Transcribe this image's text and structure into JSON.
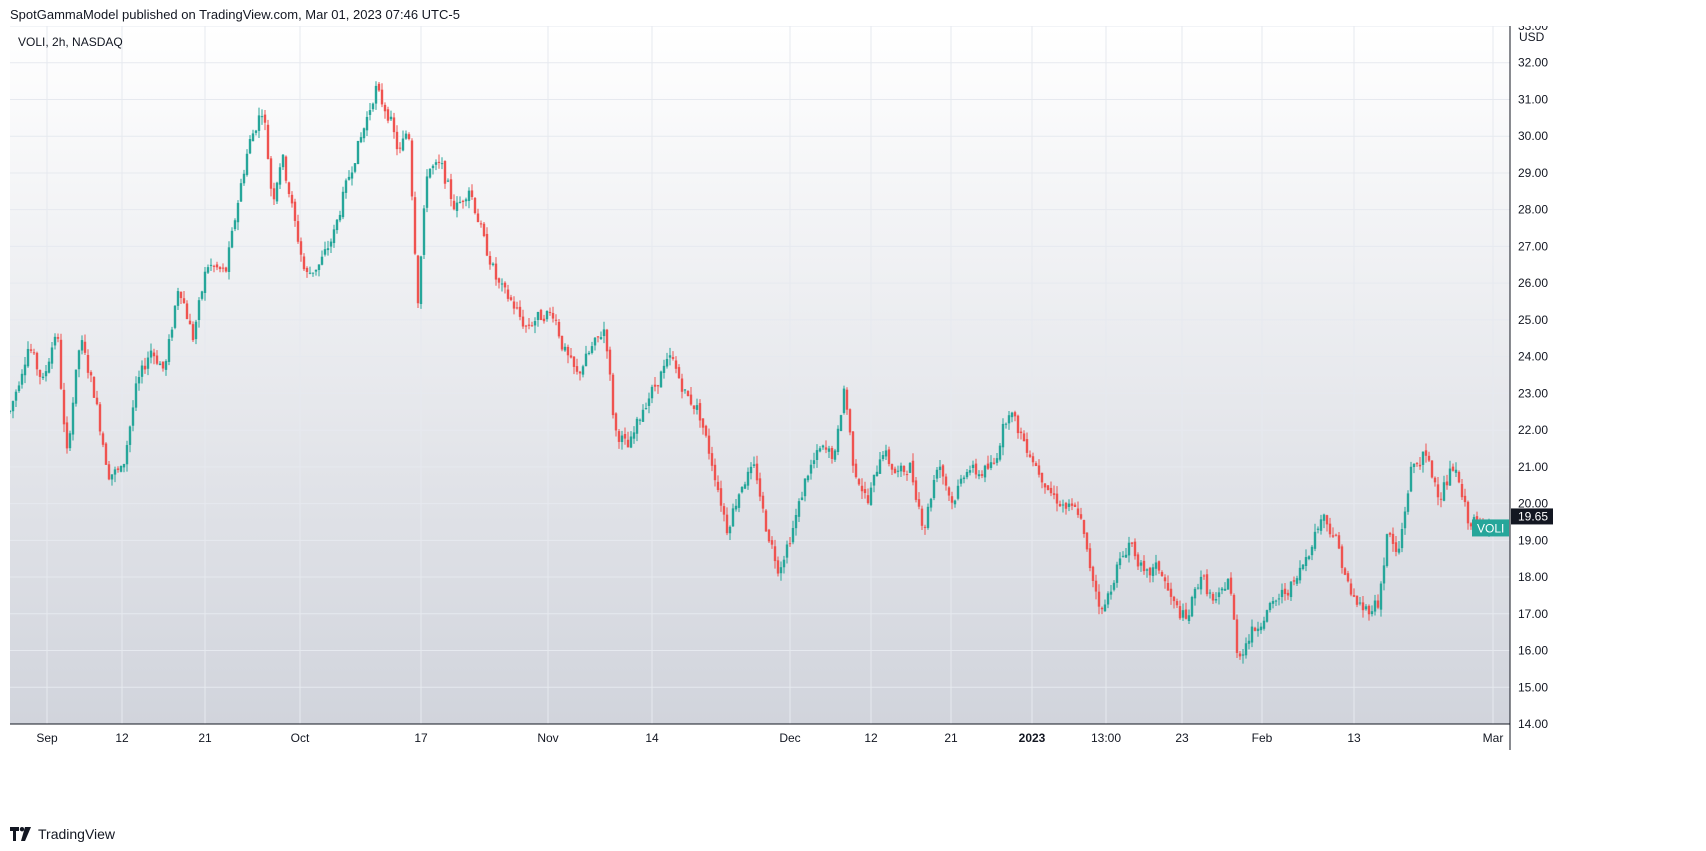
{
  "header": {
    "publisher_line": "SpotGammaModel published on TradingView.com, Mar 01, 2023 07:46 UTC-5"
  },
  "symbol_label": "VOLI, 2h, NASDAQ",
  "footer": {
    "brand": "TradingView",
    "logo_icon": "tradingview-logo-icon"
  },
  "colors": {
    "up": "#26a69a",
    "down": "#ef5350",
    "axis_text": "#131722",
    "grid": "#e6e9ef",
    "price_tag_bg": "#131722",
    "last_tag_bg": "#26a69a"
  },
  "chart_data": {
    "type": "candlestick",
    "title": "VOLI, 2h, NASDAQ",
    "currency_label": "USD",
    "ylim": [
      14,
      33
    ],
    "y_ticks": [
      "14.00",
      "15.00",
      "16.00",
      "17.00",
      "18.00",
      "19.00",
      "20.00",
      "21.00",
      "22.00",
      "23.00",
      "24.00",
      "25.00",
      "26.00",
      "27.00",
      "28.00",
      "29.00",
      "30.00",
      "31.00",
      "32.00",
      "33.00"
    ],
    "x_ticks": [
      "Sep",
      "12",
      "21",
      "Oct",
      "17",
      "Nov",
      "14",
      "Dec",
      "12",
      "21",
      "2023",
      "13:00",
      "23",
      "Feb",
      "13",
      "Mar"
    ],
    "last_price": "19.65",
    "series_tag": "VOLI",
    "grid": true,
    "price_path": [
      {
        "x": 0.0,
        "y": 22.5
      },
      {
        "x": 2.0,
        "y": 24.3
      },
      {
        "x": 3.5,
        "y": 23.3
      },
      {
        "x": 5.0,
        "y": 24.8
      },
      {
        "x": 6.0,
        "y": 21.2
      },
      {
        "x": 7.5,
        "y": 24.5
      },
      {
        "x": 9.0,
        "y": 23.0
      },
      {
        "x": 10.5,
        "y": 20.8
      },
      {
        "x": 12.0,
        "y": 20.9
      },
      {
        "x": 13.5,
        "y": 23.2
      },
      {
        "x": 15.0,
        "y": 24.2
      },
      {
        "x": 16.5,
        "y": 23.6
      },
      {
        "x": 18.0,
        "y": 26.0
      },
      {
        "x": 19.5,
        "y": 24.5
      },
      {
        "x": 21.0,
        "y": 26.5
      },
      {
        "x": 23.0,
        "y": 26.3
      },
      {
        "x": 24.5,
        "y": 28.5
      },
      {
        "x": 25.5,
        "y": 29.8
      },
      {
        "x": 27.0,
        "y": 30.8
      },
      {
        "x": 28.0,
        "y": 28.2
      },
      {
        "x": 29.0,
        "y": 29.5
      },
      {
        "x": 30.5,
        "y": 27.5
      },
      {
        "x": 31.5,
        "y": 26.2
      },
      {
        "x": 33.0,
        "y": 26.5
      },
      {
        "x": 34.5,
        "y": 27.3
      },
      {
        "x": 36.0,
        "y": 28.8
      },
      {
        "x": 37.5,
        "y": 30.0
      },
      {
        "x": 39.0,
        "y": 31.3
      },
      {
        "x": 40.5,
        "y": 30.5
      },
      {
        "x": 41.5,
        "y": 29.5
      },
      {
        "x": 42.5,
        "y": 30.3
      },
      {
        "x": 43.5,
        "y": 25.5
      },
      {
        "x": 44.5,
        "y": 29.1
      },
      {
        "x": 46.0,
        "y": 29.2
      },
      {
        "x": 47.5,
        "y": 28.0
      },
      {
        "x": 49.0,
        "y": 28.6
      },
      {
        "x": 50.5,
        "y": 27.2
      },
      {
        "x": 52.0,
        "y": 26.0
      },
      {
        "x": 53.5,
        "y": 25.5
      },
      {
        "x": 55.0,
        "y": 24.8
      },
      {
        "x": 56.5,
        "y": 25.1
      },
      {
        "x": 58.0,
        "y": 25.2
      },
      {
        "x": 59.0,
        "y": 24.2
      },
      {
        "x": 60.5,
        "y": 23.5
      },
      {
        "x": 62.0,
        "y": 24.2
      },
      {
        "x": 63.5,
        "y": 24.8
      },
      {
        "x": 64.5,
        "y": 22.0
      },
      {
        "x": 66.0,
        "y": 21.5
      },
      {
        "x": 67.5,
        "y": 22.6
      },
      {
        "x": 69.0,
        "y": 23.3
      },
      {
        "x": 70.5,
        "y": 24.0
      },
      {
        "x": 72.0,
        "y": 23.0
      },
      {
        "x": 73.5,
        "y": 22.5
      },
      {
        "x": 75.0,
        "y": 21.0
      },
      {
        "x": 76.5,
        "y": 19.3
      },
      {
        "x": 78.0,
        "y": 20.5
      },
      {
        "x": 79.5,
        "y": 21.0
      },
      {
        "x": 80.5,
        "y": 19.5
      },
      {
        "x": 82.0,
        "y": 18.2
      },
      {
        "x": 83.5,
        "y": 19.3
      },
      {
        "x": 85.0,
        "y": 20.8
      },
      {
        "x": 86.5,
        "y": 21.5
      },
      {
        "x": 88.0,
        "y": 21.3
      },
      {
        "x": 89.0,
        "y": 23.2
      },
      {
        "x": 90.0,
        "y": 21.0
      },
      {
        "x": 91.5,
        "y": 20.0
      },
      {
        "x": 93.0,
        "y": 21.5
      },
      {
        "x": 94.5,
        "y": 20.8
      },
      {
        "x": 96.0,
        "y": 21.0
      },
      {
        "x": 97.5,
        "y": 19.3
      },
      {
        "x": 99.0,
        "y": 21.2
      },
      {
        "x": 100.5,
        "y": 20.0
      },
      {
        "x": 102.0,
        "y": 21.0
      },
      {
        "x": 103.5,
        "y": 20.8
      },
      {
        "x": 105.0,
        "y": 21.1
      },
      {
        "x": 106.5,
        "y": 22.6
      },
      {
        "x": 108.0,
        "y": 21.8
      },
      {
        "x": 109.5,
        "y": 21.0
      },
      {
        "x": 111.0,
        "y": 20.3
      },
      {
        "x": 112.5,
        "y": 19.9
      },
      {
        "x": 114.0,
        "y": 19.8
      },
      {
        "x": 115.0,
        "y": 18.5
      },
      {
        "x": 116.5,
        "y": 17.0
      },
      {
        "x": 118.0,
        "y": 18.2
      },
      {
        "x": 119.5,
        "y": 19.0
      },
      {
        "x": 121.0,
        "y": 18.0
      },
      {
        "x": 122.5,
        "y": 18.3
      },
      {
        "x": 124.0,
        "y": 17.3
      },
      {
        "x": 125.5,
        "y": 16.8
      },
      {
        "x": 127.0,
        "y": 18.1
      },
      {
        "x": 128.5,
        "y": 17.2
      },
      {
        "x": 130.0,
        "y": 18.0
      },
      {
        "x": 131.0,
        "y": 15.8
      },
      {
        "x": 132.5,
        "y": 16.5
      },
      {
        "x": 134.0,
        "y": 17.0
      },
      {
        "x": 135.5,
        "y": 17.5
      },
      {
        "x": 137.0,
        "y": 17.8
      },
      {
        "x": 138.5,
        "y": 18.7
      },
      {
        "x": 140.0,
        "y": 19.7
      },
      {
        "x": 141.5,
        "y": 19.0
      },
      {
        "x": 143.0,
        "y": 17.5
      },
      {
        "x": 144.5,
        "y": 17.1
      },
      {
        "x": 146.0,
        "y": 17.3
      },
      {
        "x": 147.0,
        "y": 19.3
      },
      {
        "x": 148.0,
        "y": 18.5
      },
      {
        "x": 149.5,
        "y": 21.0
      },
      {
        "x": 151.0,
        "y": 21.3
      },
      {
        "x": 152.5,
        "y": 20.2
      },
      {
        "x": 154.0,
        "y": 21.0
      },
      {
        "x": 155.5,
        "y": 19.6
      },
      {
        "x": 157.0,
        "y": 19.3
      },
      {
        "x": 158.0,
        "y": 19.65
      }
    ]
  }
}
